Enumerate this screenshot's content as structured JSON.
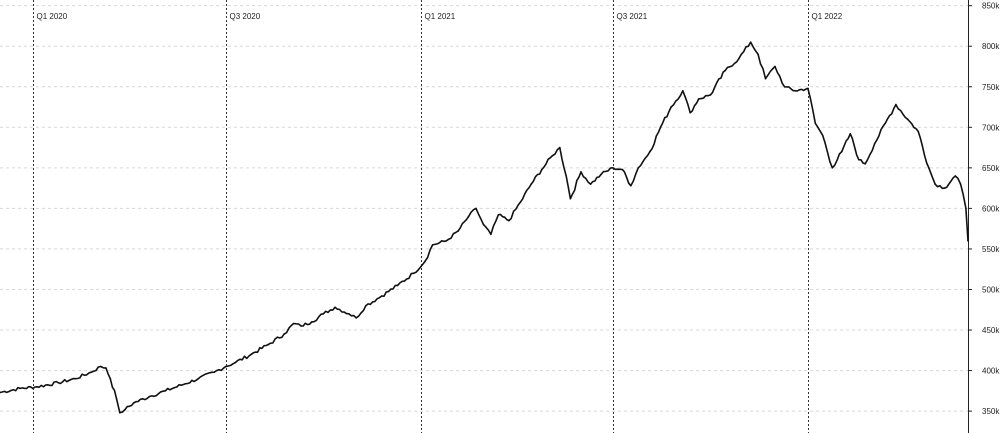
{
  "chart_data": {
    "type": "line",
    "title": "",
    "xlabel": "",
    "ylabel": "",
    "x_range": [
      "2019-12-01",
      "2022-06-01"
    ],
    "ylim": [
      323000,
      857000
    ],
    "y_ticks": [
      350000,
      400000,
      450000,
      500000,
      550000,
      600000,
      650000,
      700000,
      750000,
      800000,
      850000
    ],
    "y_tick_labels": [
      "350k",
      "400k",
      "450k",
      "500k",
      "550k",
      "600k",
      "650k",
      "700k",
      "750k",
      "800k",
      "850k"
    ],
    "x_markers": [
      {
        "date": "2020-01-01",
        "label": "Q1 2020"
      },
      {
        "date": "2020-07-01",
        "label": "Q3 2020"
      },
      {
        "date": "2021-01-01",
        "label": "Q1 2021"
      },
      {
        "date": "2021-07-01",
        "label": "Q3 2021"
      },
      {
        "date": "2022-01-01",
        "label": "Q1 2022"
      }
    ],
    "grid": true,
    "line_color": "#111111",
    "series": [
      {
        "points": [
          [
            "2019-12-01",
            373000
          ],
          [
            "2019-12-20",
            378000
          ],
          [
            "2020-01-05",
            380000
          ],
          [
            "2020-01-25",
            385000
          ],
          [
            "2020-02-10",
            390000
          ],
          [
            "2020-02-25",
            398000
          ],
          [
            "2020-03-05",
            405000
          ],
          [
            "2020-03-10",
            403000
          ],
          [
            "2020-03-14",
            390000
          ],
          [
            "2020-03-20",
            365000
          ],
          [
            "2020-03-23",
            348000
          ],
          [
            "2020-03-28",
            352000
          ],
          [
            "2020-04-05",
            360000
          ],
          [
            "2020-04-20",
            368000
          ],
          [
            "2020-05-05",
            375000
          ],
          [
            "2020-05-20",
            382000
          ],
          [
            "2020-06-05",
            390000
          ],
          [
            "2020-06-20",
            398000
          ],
          [
            "2020-07-01",
            405000
          ],
          [
            "2020-07-10",
            410000
          ],
          [
            "2020-07-25",
            420000
          ],
          [
            "2020-08-10",
            432000
          ],
          [
            "2020-08-25",
            445000
          ],
          [
            "2020-09-03",
            458000
          ],
          [
            "2020-09-10",
            455000
          ],
          [
            "2020-09-20",
            460000
          ],
          [
            "2020-10-01",
            470000
          ],
          [
            "2020-10-12",
            478000
          ],
          [
            "2020-10-25",
            470000
          ],
          [
            "2020-11-01",
            465000
          ],
          [
            "2020-11-10",
            480000
          ],
          [
            "2020-11-25",
            492000
          ],
          [
            "2020-12-10",
            505000
          ],
          [
            "2020-12-25",
            520000
          ],
          [
            "2021-01-05",
            535000
          ],
          [
            "2021-01-12",
            555000
          ],
          [
            "2021-01-25",
            560000
          ],
          [
            "2021-02-05",
            572000
          ],
          [
            "2021-02-15",
            590000
          ],
          [
            "2021-02-22",
            600000
          ],
          [
            "2021-03-01",
            580000
          ],
          [
            "2021-03-08",
            568000
          ],
          [
            "2021-03-15",
            592000
          ],
          [
            "2021-03-25",
            585000
          ],
          [
            "2021-04-05",
            608000
          ],
          [
            "2021-04-15",
            630000
          ],
          [
            "2021-04-25",
            648000
          ],
          [
            "2021-05-05",
            665000
          ],
          [
            "2021-05-12",
            675000
          ],
          [
            "2021-05-18",
            640000
          ],
          [
            "2021-05-22",
            612000
          ],
          [
            "2021-06-01",
            645000
          ],
          [
            "2021-06-10",
            630000
          ],
          [
            "2021-06-20",
            642000
          ],
          [
            "2021-07-01",
            650000
          ],
          [
            "2021-07-10",
            648000
          ],
          [
            "2021-07-18",
            628000
          ],
          [
            "2021-07-25",
            650000
          ],
          [
            "2021-08-05",
            670000
          ],
          [
            "2021-08-15",
            700000
          ],
          [
            "2021-08-25",
            725000
          ],
          [
            "2021-09-05",
            745000
          ],
          [
            "2021-09-12",
            718000
          ],
          [
            "2021-09-20",
            735000
          ],
          [
            "2021-10-01",
            740000
          ],
          [
            "2021-10-15",
            770000
          ],
          [
            "2021-10-28",
            785000
          ],
          [
            "2021-11-08",
            805000
          ],
          [
            "2021-11-15",
            790000
          ],
          [
            "2021-11-22",
            760000
          ],
          [
            "2021-12-01",
            775000
          ],
          [
            "2021-12-10",
            750000
          ],
          [
            "2021-12-20",
            745000
          ],
          [
            "2022-01-01",
            748000
          ],
          [
            "2022-01-08",
            705000
          ],
          [
            "2022-01-15",
            690000
          ],
          [
            "2022-01-24",
            650000
          ],
          [
            "2022-02-02",
            670000
          ],
          [
            "2022-02-10",
            692000
          ],
          [
            "2022-02-18",
            660000
          ],
          [
            "2022-02-24",
            655000
          ],
          [
            "2022-03-05",
            680000
          ],
          [
            "2022-03-15",
            705000
          ],
          [
            "2022-03-25",
            728000
          ],
          [
            "2022-04-05",
            710000
          ],
          [
            "2022-04-15",
            695000
          ],
          [
            "2022-04-25",
            650000
          ],
          [
            "2022-05-01",
            630000
          ],
          [
            "2022-05-10",
            625000
          ],
          [
            "2022-05-20",
            640000
          ],
          [
            "2022-05-25",
            630000
          ],
          [
            "2022-05-30",
            600000
          ],
          [
            "2022-06-01",
            560000
          ]
        ]
      }
    ]
  }
}
